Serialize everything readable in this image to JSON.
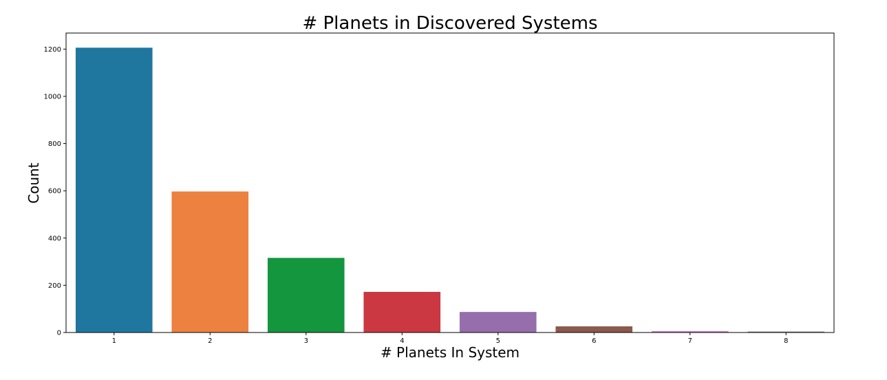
{
  "chart_data": {
    "type": "bar",
    "title": "# Planets in Discovered Systems",
    "xlabel": "# Planets In System",
    "ylabel": "Count",
    "categories": [
      "1",
      "2",
      "3",
      "4",
      "5",
      "6",
      "7",
      "8"
    ],
    "values": [
      1206,
      597,
      316,
      172,
      87,
      26,
      6,
      4
    ],
    "ylim": [
      0,
      1268
    ],
    "yticks": [
      0,
      200,
      400,
      600,
      800,
      1000,
      1200
    ],
    "grid": false,
    "colors": [
      "#1f77a0",
      "#ec8140",
      "#14963e",
      "#cb3842",
      "#966eac",
      "#8c594d",
      "#d67fc0",
      "#7f7f7f"
    ]
  }
}
